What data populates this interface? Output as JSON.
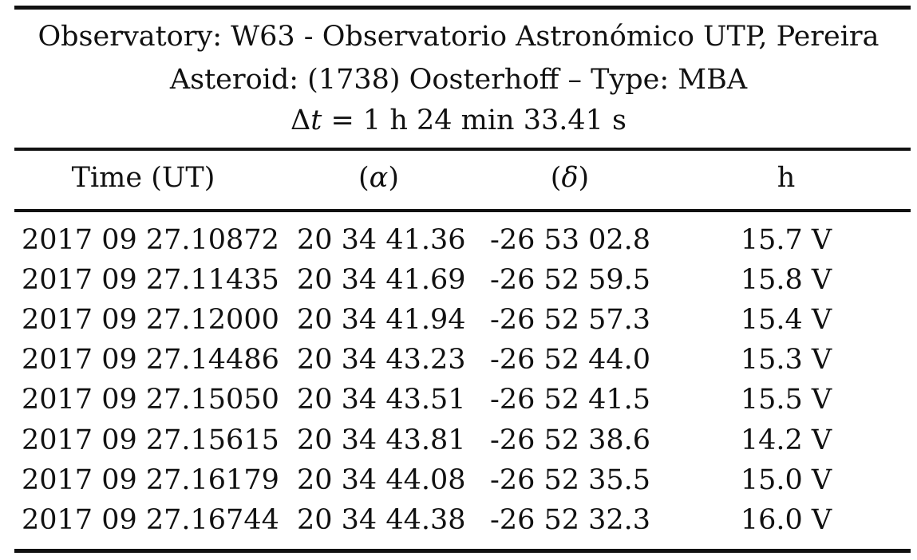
{
  "caption": {
    "observatory": "Observatory: W63 - Observatorio Astronómico UTP, Pereira",
    "asteroid": "Asteroid: (1738) Oosterhoff –  Type: MBA",
    "delta_symbol": "Δ",
    "delta_var": "t",
    "delta_value": " = 1 h 24 min 33.41 s"
  },
  "table": {
    "headers": {
      "time": "Time (UT)",
      "ra_open": "(",
      "ra_symbol": "α",
      "ra_close": ")",
      "dec_open": "(",
      "dec_symbol": "δ",
      "dec_close": ")",
      "mag": "h"
    },
    "rows": [
      {
        "time": "2017 09 27.10872",
        "ra": "20 34 41.36",
        "dec": "-26 53 02.8",
        "mag": "15.7 V"
      },
      {
        "time": "2017 09 27.11435",
        "ra": "20 34 41.69",
        "dec": "-26 52 59.5",
        "mag": "15.8 V"
      },
      {
        "time": "2017 09 27.12000",
        "ra": "20 34 41.94",
        "dec": "-26 52 57.3",
        "mag": "15.4 V"
      },
      {
        "time": "2017 09 27.14486",
        "ra": "20 34 43.23",
        "dec": "-26 52 44.0",
        "mag": "15.3 V"
      },
      {
        "time": "2017 09 27.15050",
        "ra": "20 34 43.51",
        "dec": "-26 52 41.5",
        "mag": "15.5 V"
      },
      {
        "time": "2017 09 27.15615",
        "ra": "20 34 43.81",
        "dec": "-26 52 38.6",
        "mag": "14.2 V"
      },
      {
        "time": "2017 09 27.16179",
        "ra": "20 34 44.08",
        "dec": "-26 52 35.5",
        "mag": "15.0 V"
      },
      {
        "time": "2017 09 27.16744",
        "ra": "20 34 44.38",
        "dec": "-26 52 32.3",
        "mag": "16.0 V"
      }
    ]
  }
}
